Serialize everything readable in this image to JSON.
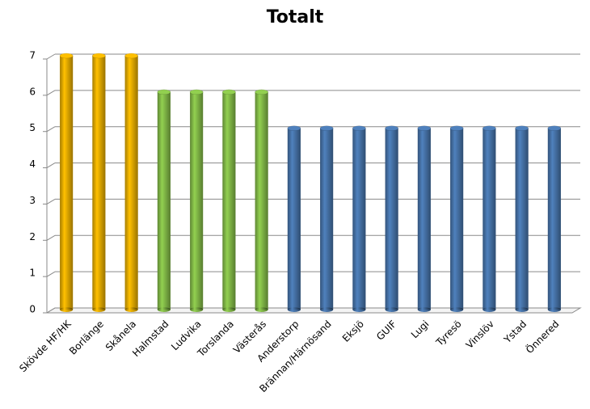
{
  "chart_data": {
    "type": "bar",
    "title": "Totalt",
    "categories": [
      "Skövde HF/HK",
      "Borlänge",
      "Skånela",
      "Halmstad",
      "Ludvika",
      "Torslanda",
      "Västerås",
      "Anderstorp",
      "Brännan/Härnösand",
      "Eksjö",
      "GUIF",
      "Lugi",
      "Tyresö",
      "Vinslöv",
      "Ystad",
      "Önnered"
    ],
    "values": [
      7,
      7,
      7,
      6,
      6,
      6,
      6,
      5,
      5,
      5,
      5,
      5,
      5,
      5,
      5,
      5
    ],
    "colors": [
      "#ffc000",
      "#ffc000",
      "#ffc000",
      "#92d050",
      "#92d050",
      "#92d050",
      "#92d050",
      "#4f81bd",
      "#4f81bd",
      "#4f81bd",
      "#4f81bd",
      "#4f81bd",
      "#4f81bd",
      "#4f81bd",
      "#4f81bd",
      "#4f81bd"
    ],
    "ylim": [
      0,
      7
    ],
    "yticks": [
      0,
      1,
      2,
      3,
      4,
      5,
      6,
      7
    ],
    "grid": true
  }
}
